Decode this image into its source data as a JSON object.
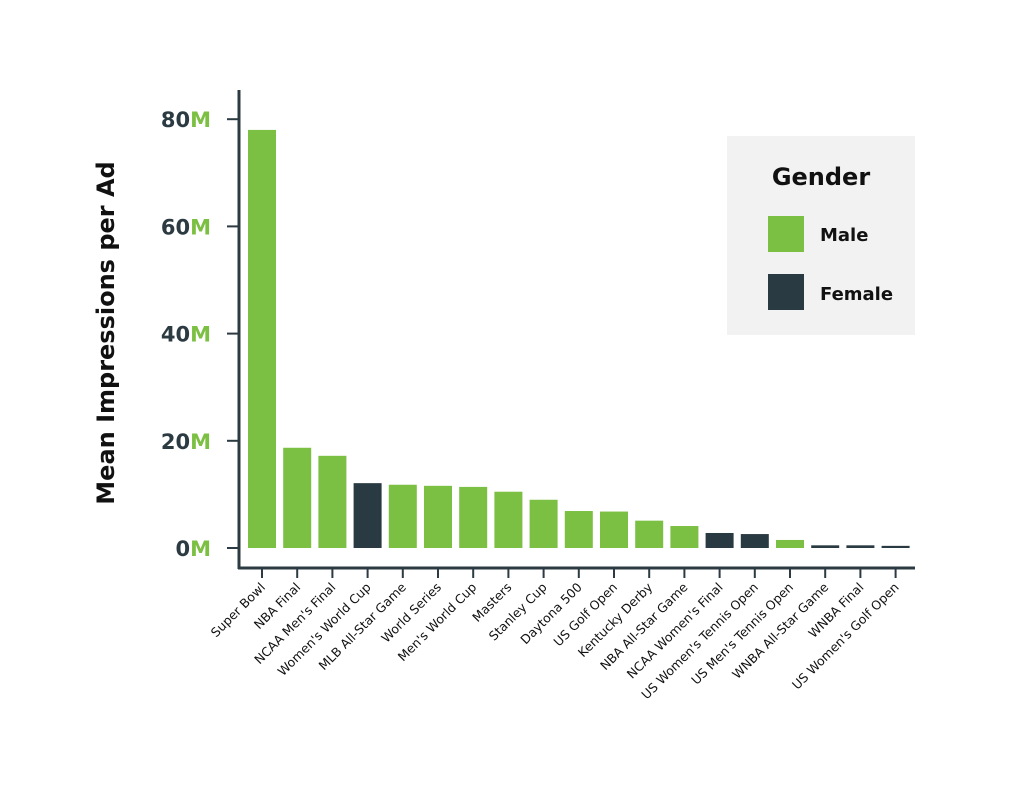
{
  "chart_data": {
    "type": "bar",
    "ylabel": "Mean Impressions per Ad",
    "xlabel": "",
    "ylim": [
      0,
      85
    ],
    "y_ticks": [
      {
        "value": 0,
        "num": "0",
        "unit": "M"
      },
      {
        "value": 20,
        "num": "20",
        "unit": "M"
      },
      {
        "value": 40,
        "num": "40",
        "unit": "M"
      },
      {
        "value": 60,
        "num": "60",
        "unit": "M"
      },
      {
        "value": 80,
        "num": "80",
        "unit": "M"
      }
    ],
    "legend": {
      "title": "Gender",
      "position": "top-right",
      "items": [
        {
          "label": "Male",
          "color": "#7bbf43"
        },
        {
          "label": "Female",
          "color": "#2a3a42"
        }
      ]
    },
    "categories": [
      "Super Bowl",
      "NBA Final",
      "NCAA Men's Final",
      "Women's World Cup",
      "MLB All-Star Game",
      "World Series",
      "Men's World Cup",
      "Masters",
      "Stanley Cup",
      "Daytona 500",
      "US Golf Open",
      "Kentucky Derby",
      "NBA All-Star Game",
      "NCAA Women's Final",
      "US Women's Tennis Open",
      "US Men's Tennis Open",
      "WNBA All-Star Game",
      "WNBA Final",
      "US Women's Golf Open"
    ],
    "values": [
      78,
      18.7,
      17.2,
      12.1,
      11.8,
      11.6,
      11.4,
      10.5,
      9.0,
      6.9,
      6.8,
      5.1,
      4.1,
      2.8,
      2.6,
      1.5,
      0.5,
      0.5,
      0.4
    ],
    "genders": [
      "Male",
      "Male",
      "Male",
      "Female",
      "Male",
      "Male",
      "Male",
      "Male",
      "Male",
      "Male",
      "Male",
      "Male",
      "Male",
      "Female",
      "Female",
      "Male",
      "Female",
      "Female",
      "Female"
    ]
  }
}
